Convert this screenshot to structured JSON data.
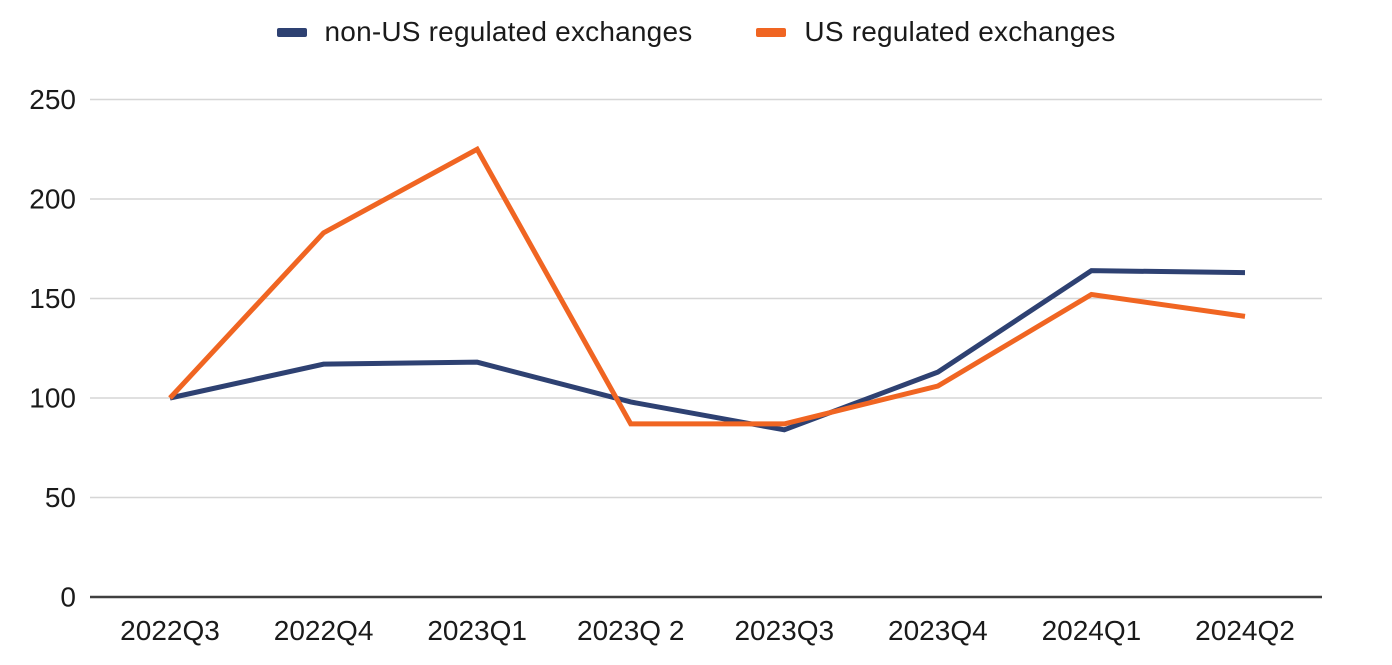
{
  "chart_data": {
    "type": "line",
    "title": "",
    "xlabel": "",
    "ylabel": "",
    "categories": [
      "2022Q3",
      "2022Q4",
      "2023Q1",
      "2023Q 2",
      "2023Q3",
      "2023Q4",
      "2024Q1",
      "2024Q2"
    ],
    "series": [
      {
        "name": "non-US regulated exchanges",
        "color": "#2e4172",
        "values": [
          100,
          117,
          118,
          98,
          84,
          113,
          164,
          163
        ]
      },
      {
        "name": "US regulated exchanges",
        "color": "#f06522",
        "values": [
          100,
          183,
          225,
          87,
          87,
          106,
          152,
          141
        ]
      }
    ],
    "yticks": [
      0,
      50,
      100,
      150,
      200,
      250
    ],
    "ylim": [
      0,
      250
    ],
    "grid": true,
    "legend_position": "top"
  },
  "colors": {
    "gridline": "#d6d6d6",
    "axis": "#404040",
    "text": "#1a1a1a",
    "background": "#ffffff"
  }
}
